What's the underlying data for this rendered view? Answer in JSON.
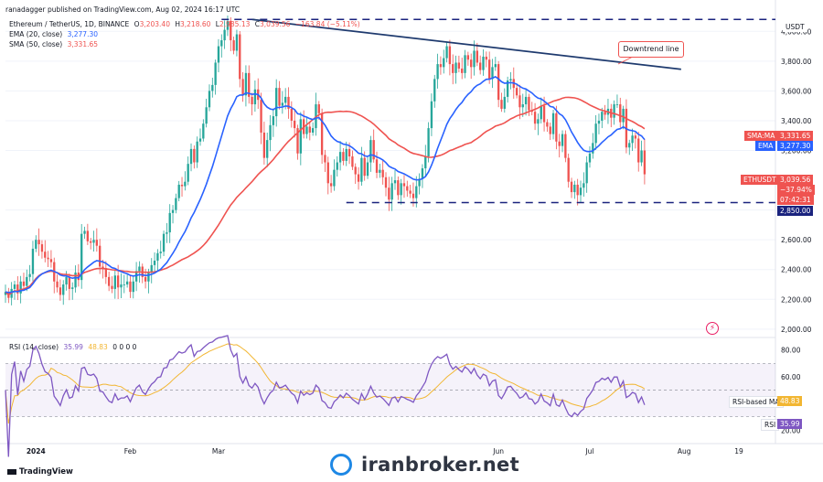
{
  "header": {
    "publisher": "ranadagger published on TradingView.com, Aug 02, 2024 16:17 UTC"
  },
  "symbol_line": {
    "name": "Ethereum / TetherUS, 1D, BINANCE",
    "open_label": "O",
    "open": "3,203.40",
    "high_label": "H",
    "high": "3,218.60",
    "low_label": "L",
    "low": "2,985.13",
    "close_label": "C",
    "close": "3,039.56",
    "change": "−163.84 (−5.11%)"
  },
  "indicators": {
    "ema": {
      "label": "EMA (20, close)",
      "value": "3,277.30",
      "color": "#2962ff"
    },
    "sma": {
      "label": "SMA (50, close)",
      "value": "3,331.65",
      "color": "#ef5350"
    },
    "rsi": {
      "label": "RSI (14, close)",
      "value": "35.99",
      "ma_value": "48.83",
      "extra": "0 0 0 0"
    }
  },
  "annotation": "Downtrend line",
  "axis_unit": "USDT",
  "price_tags": {
    "sma": {
      "label": "SMA:MA",
      "value": "3,331.65"
    },
    "ema": {
      "label": "EMA",
      "value": "3,277.30"
    },
    "last": {
      "label": "ETHUSDT",
      "value": "3,039.56",
      "change": "−37.94%",
      "countdown": "07:42:31"
    },
    "support": "2,850.00",
    "rsi_ma": {
      "label": "RSI-based MA",
      "value": "48.83"
    },
    "rsi": {
      "label": "RSI",
      "value": "35.99"
    }
  },
  "branding": {
    "tv": "TradingView",
    "site": "iranbroker.net"
  },
  "colors": {
    "up": "#26a69a",
    "down": "#ef5350",
    "ema": "#2962ff",
    "sma": "#ef5350",
    "rsi": "#7e57c2",
    "rsi_ma": "#f2b632",
    "trend": "#1e3a6e",
    "support": "#1a237e"
  },
  "chart_data": {
    "type": "candlestick",
    "price_ticks": [
      "4,000.00",
      "3,800.00",
      "3,600.00",
      "3,400.00",
      "3,200.00",
      "2,800.00",
      "2,600.00",
      "2,400.00",
      "2,200.00",
      "2,000.00"
    ],
    "price_tick_values": [
      4000,
      3800,
      3600,
      3400,
      3200,
      2800,
      2600,
      2400,
      2200,
      2000
    ],
    "price_range": [
      1950,
      4100
    ],
    "rsi_ticks": [
      "80.00",
      "60.00",
      "40.00",
      "20.00"
    ],
    "rsi_tick_values": [
      80,
      60,
      40,
      20
    ],
    "rsi_range": [
      12,
      88
    ],
    "rsi_band": [
      30,
      70
    ],
    "x_labels": [
      "2024",
      "Feb",
      "Mar",
      "Jun",
      "Jul",
      "Aug",
      "19"
    ],
    "x_label_dates": [
      "2024-01-01",
      "2024-02-01",
      "2024-03-01",
      "2024-06-01",
      "2024-07-01",
      "2024-08-01",
      "2024-08-19"
    ],
    "x_range": [
      "2023-12-22",
      "2024-08-31"
    ],
    "support_level": 2850,
    "top_level": 4080,
    "trendline": [
      {
        "date": "2024-03-12",
        "price": 4080
      },
      {
        "date": "2024-07-31",
        "price": 3745
      }
    ],
    "candles_note": "approximate daily closes read off the chart",
    "closes": [
      2250,
      2210,
      2270,
      2300,
      2240,
      2320,
      2290,
      2350,
      2370,
      2540,
      2600,
      2570,
      2520,
      2480,
      2470,
      2450,
      2320,
      2280,
      2230,
      2300,
      2350,
      2270,
      2280,
      2380,
      2330,
      2640,
      2660,
      2590,
      2580,
      2600,
      2560,
      2420,
      2410,
      2350,
      2290,
      2270,
      2360,
      2280,
      2300,
      2300,
      2320,
      2250,
      2320,
      2390,
      2420,
      2350,
      2320,
      2380,
      2430,
      2460,
      2510,
      2520,
      2640,
      2650,
      2780,
      2800,
      2880,
      2970,
      2960,
      2990,
      3110,
      3210,
      3120,
      3260,
      3280,
      3380,
      3490,
      3600,
      3640,
      3790,
      3900,
      3940,
      4010,
      4070,
      3940,
      3870,
      3980,
      3680,
      3570,
      3720,
      3560,
      3510,
      3610,
      3540,
      3320,
      3150,
      3270,
      3370,
      3430,
      3620,
      3500,
      3520,
      3560,
      3480,
      3400,
      3350,
      3180,
      3410,
      3310,
      3360,
      3320,
      3350,
      3510,
      3450,
      3170,
      3120,
      2980,
      2960,
      3070,
      3120,
      3190,
      3130,
      3210,
      3160,
      3090,
      3040,
      2990,
      3150,
      3030,
      3120,
      3270,
      3140,
      3050,
      3070,
      3020,
      2950,
      2870,
      2980,
      3000,
      2900,
      2980,
      2960,
      2930,
      2910,
      2880,
      2960,
      3010,
      3080,
      3160,
      3350,
      3530,
      3680,
      3780,
      3760,
      3820,
      3900,
      3780,
      3720,
      3790,
      3750,
      3720,
      3840,
      3810,
      3760,
      3870,
      3790,
      3740,
      3830,
      3810,
      3680,
      3760,
      3780,
      3540,
      3480,
      3560,
      3670,
      3680,
      3620,
      3570,
      3490,
      3510,
      3560,
      3470,
      3460,
      3380,
      3410,
      3500,
      3390,
      3360,
      3310,
      3450,
      3260,
      3230,
      3310,
      3150,
      2990,
      2920,
      2970,
      2900,
      2950,
      2980,
      3120,
      3180,
      3250,
      3380,
      3400,
      3460,
      3440,
      3480,
      3420,
      3510,
      3510,
      3390,
      3480,
      3220,
      3250,
      3300,
      3280,
      3120,
      3200,
      3040
    ],
    "ema20_end": 3277.3,
    "sma50_end": 3331.65,
    "rsi_end": 35.99,
    "rsi_ma_end": 48.83
  }
}
